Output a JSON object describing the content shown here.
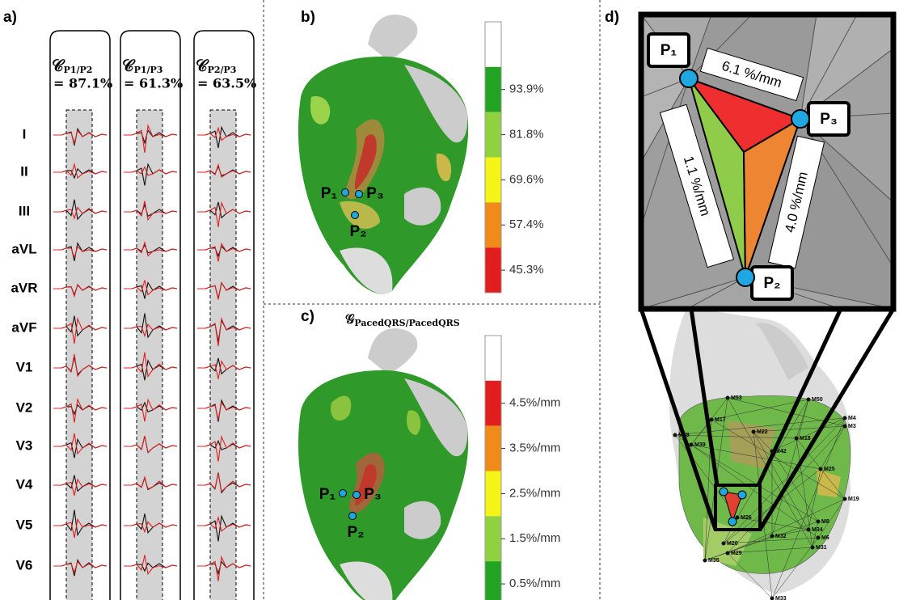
{
  "panels": {
    "a": "a)",
    "b": "b)",
    "c": "c)",
    "d": "d)"
  },
  "leads": [
    "I",
    "II",
    "III",
    "aVL",
    "aVR",
    "aVF",
    "V1",
    "V2",
    "V3",
    "V4",
    "V5",
    "V6"
  ],
  "correlations": [
    {
      "symbol": "𝒞",
      "subscript": "P1/P2",
      "value": "= 87.1%"
    },
    {
      "symbol": "𝒞",
      "subscript": "P1/P3",
      "value": "= 61.3%"
    },
    {
      "symbol": "𝒞",
      "subscript": "P2/P3",
      "value": "= 63.5%"
    }
  ],
  "colorbar_b": [
    "93.9%",
    "81.8%",
    "69.6%",
    "57.4%",
    "45.3%"
  ],
  "gradient_title": {
    "symbol": "𝒢",
    "subscript": "PacedQRS/PacedQRS"
  },
  "colorbar_c": [
    "4.5%/mm",
    "3.5%/mm",
    "2.5%/mm",
    "1.5%/mm",
    "0.5%/mm"
  ],
  "points": [
    "P₁",
    "P₂",
    "P₃"
  ],
  "zoom_gradients": [
    "6.1 %/mm",
    "1.1 %/mm",
    "4.0 %/mm"
  ],
  "electrodes": [
    "M53",
    "M50",
    "M4",
    "M3",
    "M17",
    "M28",
    "M22",
    "M39",
    "M18",
    "M42",
    "M25",
    "M19",
    "M8",
    "M34",
    "M6",
    "M31",
    "M32",
    "M20",
    "M29",
    "M35",
    "M26",
    "M33"
  ]
}
